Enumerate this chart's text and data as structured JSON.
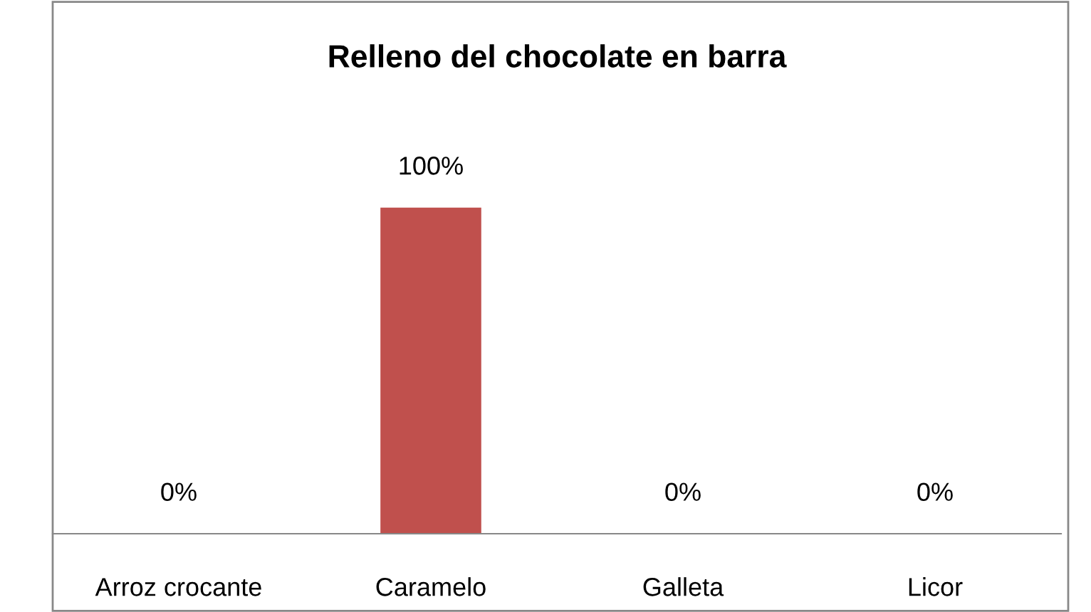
{
  "chart_data": {
    "type": "bar",
    "title": "Relleno del chocolate en barra",
    "categories": [
      "Arroz crocante",
      "Caramelo",
      "Galleta",
      "Licor"
    ],
    "values": [
      0,
      100,
      0,
      0
    ],
    "value_labels": [
      "0%",
      "100%",
      "0%",
      "0%"
    ],
    "color": "#c0504d",
    "grid": false,
    "legend": false
  }
}
